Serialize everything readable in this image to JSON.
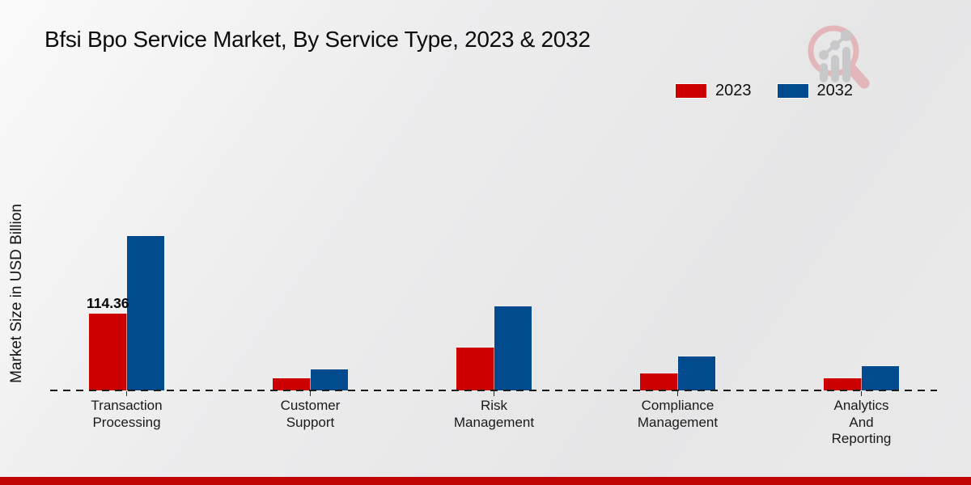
{
  "title": "Bfsi Bpo Service Market, By Service Type, 2023 & 2032",
  "ylabel": "Market Size in USD Billion",
  "watermark": {
    "icon": "magnifier-growth-chart-logo"
  },
  "colors": {
    "series_2023": "#cc0000",
    "series_2032": "#004a8d",
    "footer_accent": "#c00404",
    "baseline": "#1a1a1a"
  },
  "footer": {
    "accent_color": "#c00404"
  },
  "chart_data": {
    "type": "bar",
    "title": "Bfsi Bpo Service Market, By Service Type, 2023 & 2032",
    "ylabel": "Market Size in USD Billion",
    "categories": [
      "Transaction Processing",
      "Customer Support",
      "Risk Management",
      "Compliance Management",
      "Analytics And Reporting"
    ],
    "category_lines": [
      [
        "Transaction",
        "Processing"
      ],
      [
        "Customer",
        "Support"
      ],
      [
        "Risk",
        "Management"
      ],
      [
        "Compliance",
        "Management"
      ],
      [
        "Analytics",
        "And",
        "Reporting"
      ]
    ],
    "series": [
      {
        "name": "2023",
        "color": "#cc0000",
        "values": [
          114.36,
          18.0,
          63.0,
          25.0,
          17.5
        ]
      },
      {
        "name": "2032",
        "color": "#004a8d",
        "values": [
          228.5,
          31.0,
          125.0,
          50.0,
          36.5
        ]
      }
    ],
    "annotations": [
      {
        "text": "114.36",
        "series_index": 0,
        "category_index": 0
      }
    ],
    "ylim": [
      0,
      240
    ],
    "grid": false,
    "legend_position": "top-right",
    "baseline_style": "dashed",
    "unit": "USD Billion"
  }
}
